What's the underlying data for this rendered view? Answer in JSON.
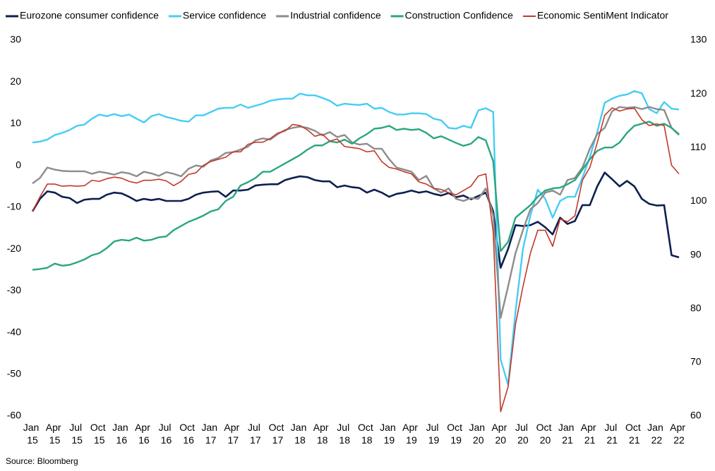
{
  "chart_data": {
    "type": "line",
    "legend": "top",
    "source": "Source: Bloomberg",
    "categories": [
      "Jan 15",
      null,
      null,
      "Apr 15",
      null,
      null,
      "Jul 15",
      null,
      null,
      "Oct 15",
      null,
      null,
      "Jan 16",
      null,
      null,
      "Apr 16",
      null,
      null,
      "Jul 16",
      null,
      null,
      "Oct 16",
      null,
      null,
      "Jan 17",
      null,
      null,
      "Apr 17",
      null,
      null,
      "Jul 17",
      null,
      null,
      "Oct 17",
      null,
      null,
      "Jan 18",
      null,
      null,
      "Apr 18",
      null,
      null,
      "Jul 18",
      null,
      null,
      "Oct 18",
      null,
      null,
      "Jan 19",
      null,
      null,
      "Apr 19",
      null,
      null,
      "Jul 19",
      null,
      null,
      "Oct 19",
      null,
      null,
      "Jan 20",
      null,
      null,
      "Apr 20",
      null,
      null,
      "Jul 20",
      null,
      null,
      "Oct 20",
      null,
      null,
      "Jan 21",
      null,
      null,
      "Apr 21",
      null,
      null,
      "Jul 21",
      null,
      null,
      "Oct 21",
      null,
      null,
      "Jan 22",
      null,
      null,
      "Apr 22"
    ],
    "ylim": [
      -60,
      30
    ],
    "yticks": [
      -60,
      -50,
      -40,
      -30,
      -20,
      -10,
      0,
      10,
      20,
      30
    ],
    "y2lim": [
      60,
      130
    ],
    "y2ticks": [
      60,
      70,
      80,
      90,
      100,
      110,
      120,
      130
    ],
    "grid": false,
    "series": [
      {
        "name": "Eurozone consumer confidence",
        "color": "#0d2050",
        "values": [
          -11,
          -8,
          -6.2,
          -6.5,
          -7.5,
          -7.8,
          -9,
          -8.2,
          -8,
          -8,
          -7,
          -6.5,
          -6.7,
          -7.5,
          -8.5,
          -8,
          -8.3,
          -8,
          -8.5,
          -8.5,
          -8.5,
          -8,
          -7,
          -6.5,
          -6.3,
          -6.2,
          -7.5,
          -6,
          -6,
          -5.8,
          -4.8,
          -4.6,
          -4.5,
          -4.5,
          -3.5,
          -3,
          -2.6,
          -2.8,
          -3.5,
          -3.8,
          -3.8,
          -5.2,
          -4.8,
          -5.2,
          -5.4,
          -6.5,
          -5.8,
          -6.5,
          -7.5,
          -6.8,
          -6.5,
          -6,
          -6.5,
          -6.2,
          -6.8,
          -7.2,
          -6.6,
          -7.6,
          -7.2,
          -8.1,
          -7.3,
          -6.5,
          -11,
          -24.5,
          -20,
          -14.3,
          -14.5,
          -14.3,
          -13.5,
          -14.8,
          -16.5,
          -12.5,
          -14,
          -13.3,
          -9.5,
          -9.5,
          -5,
          -1.7,
          -3.3,
          -5,
          -3.7,
          -5,
          -8,
          -9.2,
          -9.6,
          -9.5,
          -21.5,
          -22
        ]
      },
      {
        "name": "Service confidence",
        "color": "#45cdf5",
        "values": [
          5.5,
          5.7,
          6.2,
          7.3,
          7.8,
          8.5,
          9.5,
          9.8,
          11.2,
          12.2,
          11.8,
          12.3,
          11.8,
          12.2,
          11.2,
          10.3,
          11.8,
          12.3,
          11.6,
          11.2,
          10.7,
          10.5,
          12,
          12,
          12.8,
          13.6,
          13.8,
          13.8,
          14.6,
          13.8,
          14.3,
          14.8,
          15.5,
          15.8,
          16,
          16,
          17.2,
          16.8,
          16.8,
          16.2,
          15.5,
          14.3,
          14.8,
          14.6,
          14.5,
          14.8,
          13.6,
          13.8,
          12.8,
          12.2,
          12.2,
          12.5,
          12.5,
          12.3,
          11.2,
          10.8,
          9,
          8.8,
          9.5,
          9,
          13.2,
          13.7,
          12.8,
          -46.5,
          -52.5,
          -35,
          -20,
          -12,
          -5.8,
          -8,
          -12.5,
          -8.5,
          -7.5,
          -7.5,
          -3,
          2,
          8,
          15,
          16,
          16.7,
          17,
          17.8,
          17.3,
          13.5,
          12.5,
          15.2,
          13.6,
          13.4
        ]
      },
      {
        "name": "Industrial confidence",
        "color": "#8c8c8c",
        "values": [
          -4.3,
          -3,
          -0.5,
          -1,
          -1.3,
          -1.4,
          -1.4,
          -1.4,
          -2,
          -1.5,
          -1.8,
          -2.2,
          -1.6,
          -1.9,
          -2.6,
          -1.5,
          -1.9,
          -2.5,
          -1.6,
          -2,
          -2.6,
          -0.8,
          0,
          -0.3,
          1.2,
          1.8,
          3,
          3.2,
          3.8,
          4.5,
          6,
          6.5,
          6.2,
          7.5,
          8.5,
          9,
          9.3,
          9,
          8.3,
          7.2,
          8,
          6.8,
          7.3,
          5.5,
          5,
          5.2,
          4,
          4,
          1.5,
          -0.5,
          -1,
          -1.5,
          -3.5,
          -2.5,
          -5.5,
          -6.5,
          -5.5,
          -8,
          -8.5,
          -7.8,
          -8,
          -5.5,
          -12,
          -36.5,
          -29,
          -21,
          -15.5,
          -10.5,
          -9,
          -6.5,
          -6,
          -7,
          -3.5,
          -3,
          -0.5,
          4,
          7.5,
          9,
          13,
          14,
          13.8,
          14,
          13.5,
          14,
          13.5,
          13.3,
          9,
          7.5
        ]
      },
      {
        "name": "Construction Confidence",
        "color": "#2aa680",
        "values": [
          -25,
          -24.8,
          -24.5,
          -23.5,
          -24,
          -23.8,
          -23.2,
          -22.5,
          -21.5,
          -21,
          -19.8,
          -18.2,
          -17.8,
          -18,
          -17.3,
          -18,
          -17.8,
          -17.2,
          -17,
          -15.5,
          -14.5,
          -13.5,
          -12.8,
          -12,
          -11,
          -10.5,
          -8.5,
          -7.5,
          -4.8,
          -4,
          -3,
          -1.5,
          -1.5,
          -0.5,
          0.5,
          1.5,
          2.5,
          3.8,
          4.8,
          4.8,
          5.8,
          5.5,
          6.2,
          5.2,
          6.5,
          7.5,
          8.8,
          9,
          9.5,
          8.5,
          8.8,
          8.5,
          8.7,
          7.8,
          6.5,
          7,
          6.2,
          5.4,
          4.7,
          5.2,
          6.8,
          6,
          1,
          -20.5,
          -18.3,
          -12.5,
          -11,
          -9.5,
          -7.5,
          -6,
          -5.5,
          -5.3,
          -4.5,
          -3.5,
          -1,
          1.5,
          3.5,
          4.3,
          4.3,
          5.5,
          7.8,
          9.5,
          10,
          10.5,
          9.5,
          10,
          9,
          7.3
        ]
      },
      {
        "name": "Economic SentiMent Indicator",
        "color": "#c0392b",
        "axis": "y2",
        "values": [
          98.1,
          100.8,
          103.2,
          103.2,
          102.8,
          102.9,
          102.8,
          102.9,
          103.9,
          103.7,
          104.2,
          104.5,
          104.3,
          103.7,
          103.4,
          103.9,
          103.9,
          104.1,
          103.8,
          102.9,
          103.7,
          105,
          105.3,
          106.7,
          107.4,
          107.8,
          108.2,
          109.2,
          109.2,
          110.6,
          111,
          111,
          111.7,
          112.7,
          113.1,
          114.3,
          114.1,
          113.3,
          112.1,
          112.5,
          111.2,
          111.6,
          110.2,
          110,
          109.8,
          109.2,
          109.4,
          107.4,
          106.3,
          106,
          105.5,
          105.1,
          103.6,
          103.2,
          102.4,
          102.2,
          101.6,
          101.2,
          102,
          102.8,
          104.7,
          105.1,
          94.2,
          60.8,
          65.4,
          77.1,
          84.1,
          90.3,
          94.6,
          94.6,
          91.6,
          96.7,
          96.2,
          97.3,
          103.9,
          106.3,
          110.9,
          116,
          117.4,
          116.8,
          117.2,
          117.3,
          115.2,
          114.1,
          114.4,
          114.1,
          106.7,
          105.1
        ]
      }
    ]
  }
}
